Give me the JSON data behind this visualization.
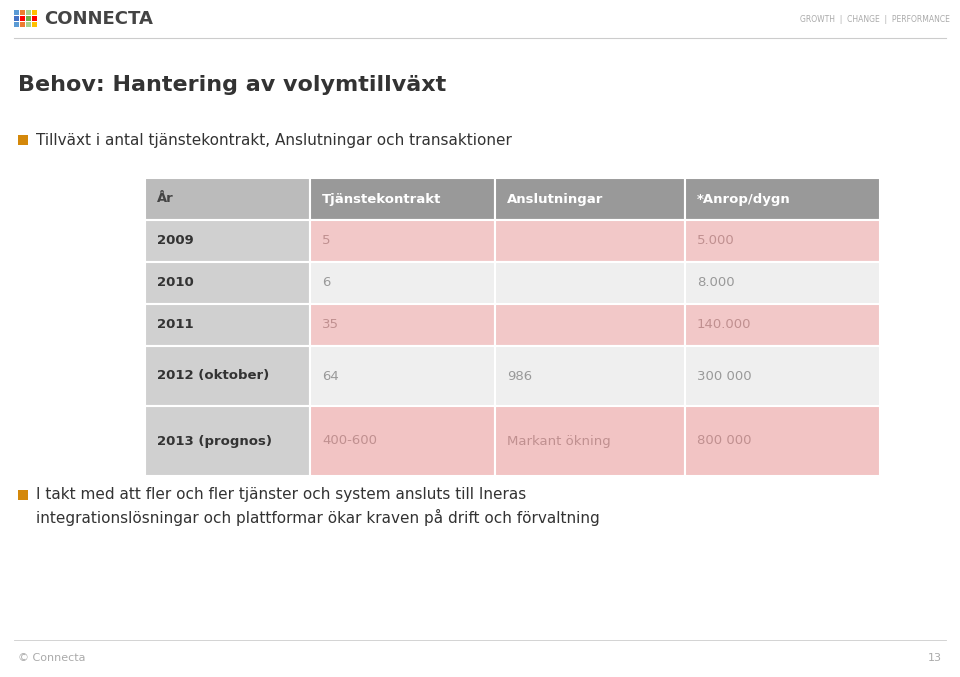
{
  "title": "Behov: Hantering av volymtillväxt",
  "bullet1": "Tillväxt i antal tjänstekontrakt, Anslutningar och transaktioner",
  "bullet2_line1": "I takt med att fler och fler tjänster och system ansluts till Ineras",
  "bullet2_line2": "integrationslösningar och plattformar ökar kraven på drift och förvaltning",
  "bullet_color": "#D4880A",
  "table_headers": [
    "År",
    "Tjänstekontrakt",
    "Anslutningar",
    "*Anrop/dygn"
  ],
  "table_rows": [
    [
      "2009",
      "5",
      "",
      "5.000"
    ],
    [
      "2010",
      "6",
      "",
      "8.000"
    ],
    [
      "2011",
      "35",
      "",
      "140.000"
    ],
    [
      "2012 (oktober)",
      "64",
      "986",
      "300 000"
    ],
    [
      "2013 (prognos)",
      "400-600",
      "Markant ökning",
      "800 000"
    ]
  ],
  "col1_header_bg": "#BBBBBB",
  "col234_header_bg": "#999999",
  "col1_data_bg": "#D8D8D8",
  "col234_pink": "#F2C8C8",
  "col234_light": "#F5F5F5",
  "col234_pink2009": "#F2C8C8",
  "col234_2010": "#F5F5F5",
  "col234_pink2011": "#F2C8C8",
  "col234_2012": "#F5F5F5",
  "col234_pink2013": "#F2C4C4",
  "bg_color": "#FFFFFF",
  "footer_text": "© Connecta",
  "page_number": "13",
  "row_colors_col1": [
    "#BBBBBB",
    "#D0D0D0",
    "#D0D0D0",
    "#D0D0D0",
    "#D0D0D0",
    "#D0D0D0"
  ],
  "row_colors_col234": [
    "#999999",
    "#F2C8C8",
    "#F5F5F5",
    "#F2C8C8",
    "#F5F5F5",
    "#F2C4C4"
  ],
  "header_text_color": "#FFFFFF",
  "data_col1_text": "#333333",
  "data_col234_text_pink": "#999999",
  "data_col234_text_light": "#666666",
  "logo_colors": [
    [
      "#5B9BD5",
      "#ED7D31",
      "#70AD47",
      "#FFC000"
    ],
    [
      "#4472C4",
      "#FF0000",
      "#00B050",
      "#FF0000"
    ],
    [
      "#5B9BD5",
      "#ED7D31",
      "#70AD47",
      "#FFC000"
    ]
  ]
}
